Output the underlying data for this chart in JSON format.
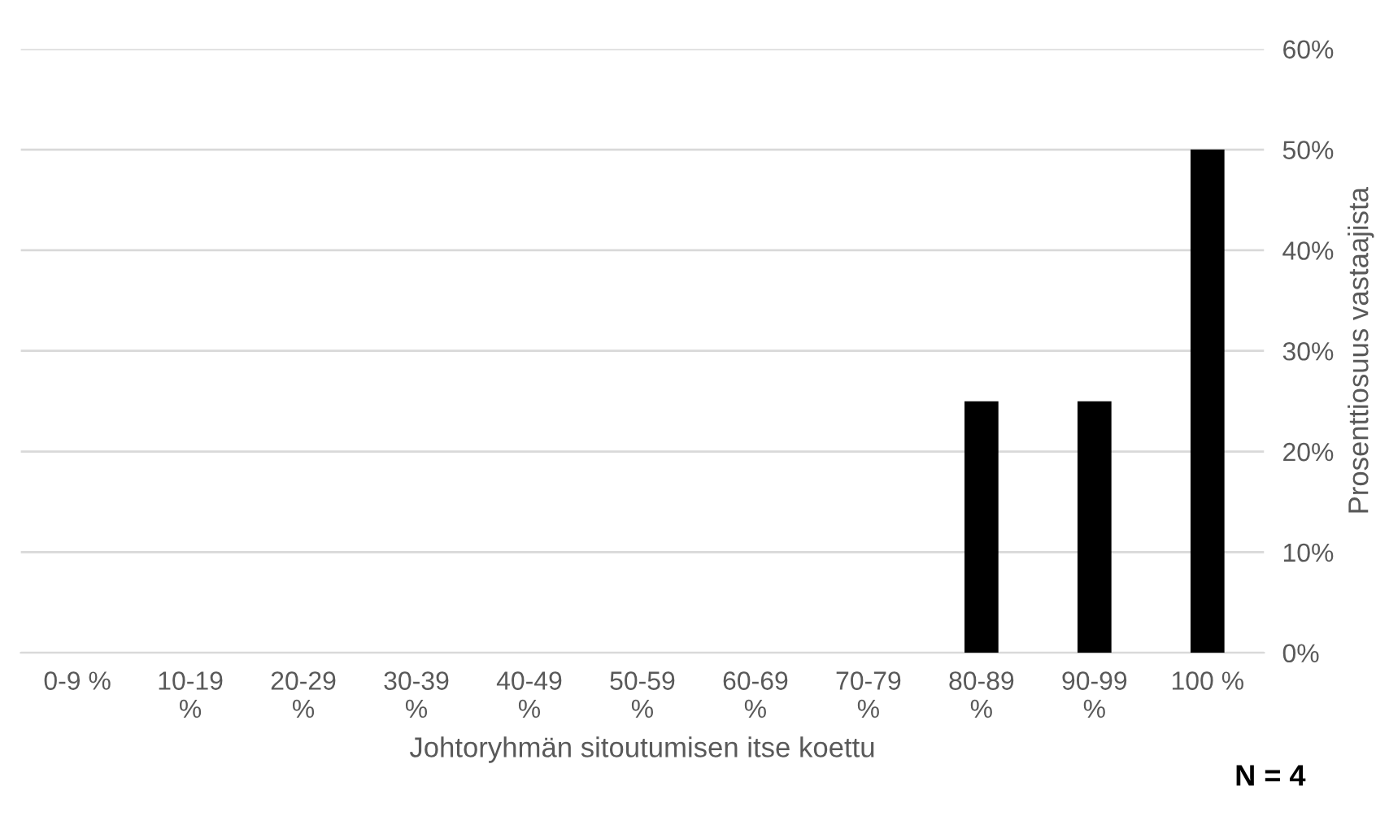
{
  "chart_data": {
    "type": "bar",
    "categories": [
      "0-9 %",
      "10-19 %",
      "20-29 %",
      "30-39 %",
      "40-49 %",
      "50-59 %",
      "60-69 %",
      "70-79 %",
      "80-89 %",
      "90-99 %",
      "100 %"
    ],
    "values": [
      0,
      0,
      0,
      0,
      0,
      0,
      0,
      0,
      25,
      25,
      50
    ],
    "color": "#000000",
    "xlabel": "Johtoryhmän sitoutumisen itse koettu",
    "ylabel": "Prosenttiosuus vastaajista",
    "ylim": [
      0,
      60
    ],
    "yticks": [
      {
        "value": 0,
        "label": "0%"
      },
      {
        "value": 10,
        "label": "10%"
      },
      {
        "value": 20,
        "label": "20%"
      },
      {
        "value": 30,
        "label": "30%"
      },
      {
        "value": 40,
        "label": "40%"
      },
      {
        "value": 50,
        "label": "50%"
      },
      {
        "value": 60,
        "label": "60%"
      }
    ],
    "grid": "y",
    "annotations": [
      "N = 4"
    ]
  }
}
